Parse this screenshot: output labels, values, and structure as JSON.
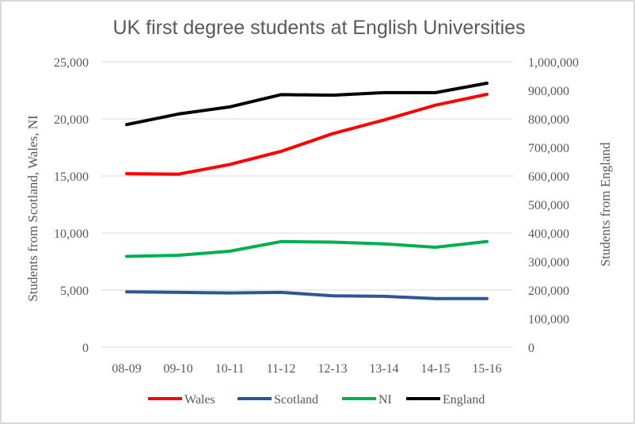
{
  "chart_data": {
    "type": "line",
    "title": "UK first degree students at English Universities",
    "xlabel": "",
    "ylabel": "Students from Scotland, Wales, NI",
    "y2label": "Students from England",
    "categories": [
      "08-09",
      "09-10",
      "10-11",
      "11-12",
      "12-13",
      "13-14",
      "14-15",
      "15-16"
    ],
    "series": [
      {
        "name": "Wales",
        "axis": "left",
        "color": "#ff0000",
        "values": [
          15200,
          15150,
          16000,
          17150,
          18700,
          19900,
          21200,
          22150
        ]
      },
      {
        "name": "Scotland",
        "axis": "left",
        "color": "#2f5597",
        "values": [
          4850,
          4800,
          4750,
          4800,
          4500,
          4450,
          4250,
          4250
        ]
      },
      {
        "name": "NI",
        "axis": "left",
        "color": "#00b050",
        "values": [
          7950,
          8050,
          8400,
          9250,
          9200,
          9050,
          8750,
          9250
        ]
      },
      {
        "name": "England",
        "axis": "right",
        "color": "#000000",
        "values": [
          780000,
          817000,
          842000,
          885000,
          883000,
          892000,
          892000,
          925000
        ]
      }
    ],
    "ylim": [
      0,
      25000
    ],
    "y2lim": [
      0,
      1000000
    ],
    "yticks": [
      "0",
      "5,000",
      "10,000",
      "15,000",
      "20,000",
      "25,000"
    ],
    "y2ticks": [
      "0",
      "100,000",
      "200,000",
      "300,000",
      "400,000",
      "500,000",
      "600,000",
      "700,000",
      "800,000",
      "900,000",
      "1,000,000"
    ],
    "grid": true,
    "legend_position": "bottom"
  },
  "colors": {
    "gridline": "#d9d9d9",
    "text": "#595959",
    "border": "#d9d9d9"
  }
}
